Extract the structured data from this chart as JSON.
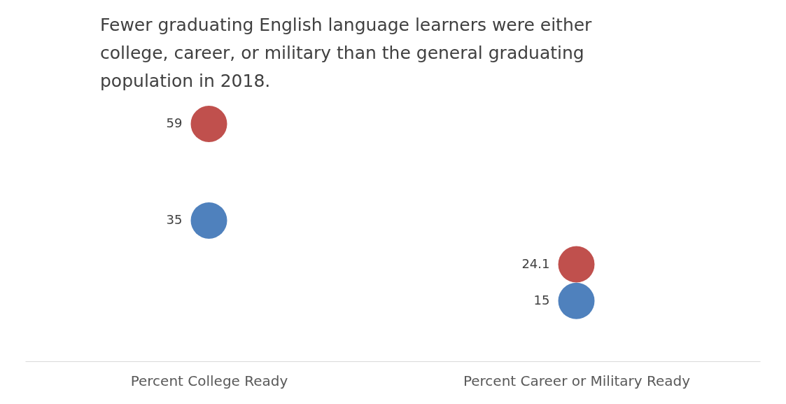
{
  "chart_data": {
    "type": "scatter",
    "title": "Fewer graduating English language learners were either college, career, or military than the general graduating population in 2018.",
    "categories": [
      "Percent College Ready",
      "Percent Career or Military Ready"
    ],
    "series": [
      {
        "color": "#c0504d",
        "values": [
          59,
          24.1
        ]
      },
      {
        "color": "#4f81bd",
        "values": [
          35,
          15
        ]
      }
    ],
    "tick_labels": "x",
    "data_labels": true,
    "marker": "circle"
  }
}
